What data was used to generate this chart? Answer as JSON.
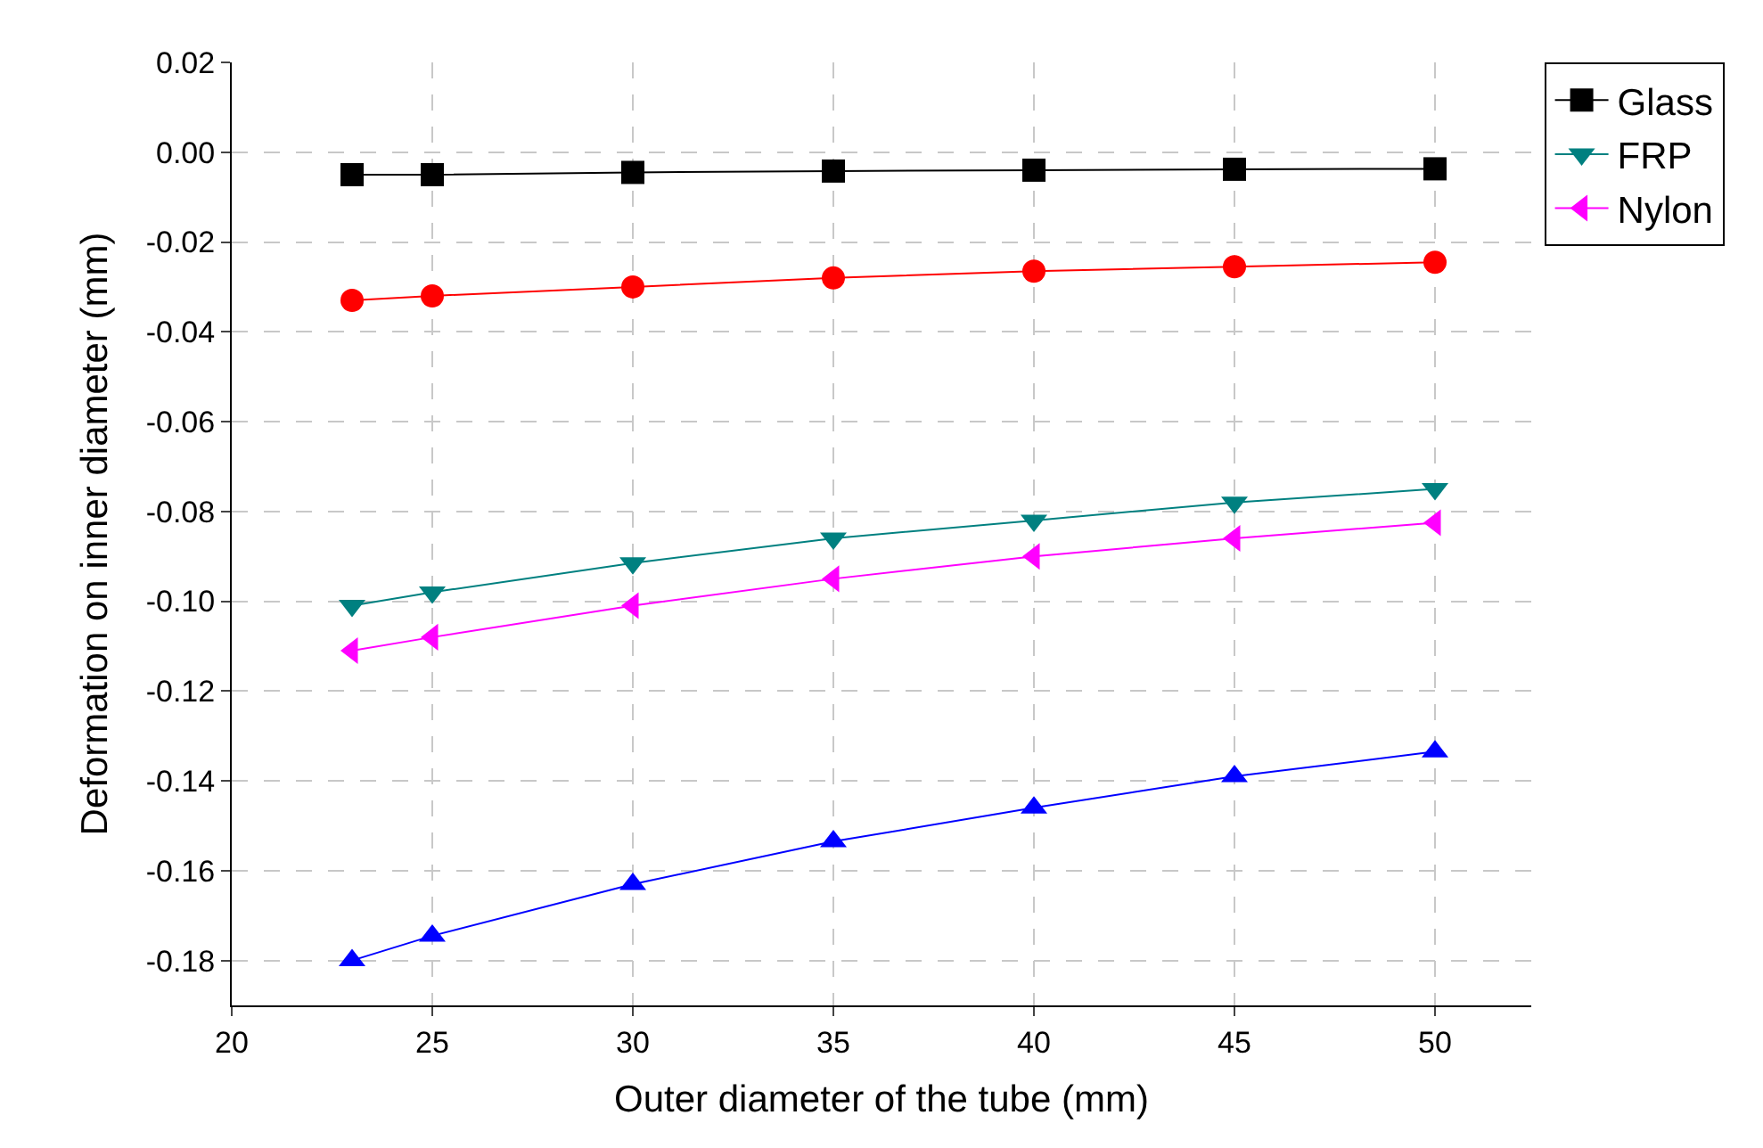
{
  "chart_data": {
    "type": "line",
    "xlabel": "Outer diameter of the tube (mm)",
    "ylabel": "Deformation on inner diameter (mm)",
    "x": [
      23,
      25,
      30,
      35,
      40,
      45,
      50
    ],
    "xlim": [
      20,
      52.4
    ],
    "xticks": [
      20,
      25,
      30,
      35,
      40,
      45,
      50
    ],
    "ylim": [
      -0.19,
      0.02
    ],
    "yticks": [
      {
        "value": 0.02,
        "label": "0.02"
      },
      {
        "value": 0,
        "label": "0.00"
      },
      {
        "value": -0.02,
        "label": "-0.02"
      },
      {
        "value": -0.04,
        "label": "-0.04"
      },
      {
        "value": -0.06,
        "label": "-0.06"
      },
      {
        "value": -0.08,
        "label": "-0.08"
      },
      {
        "value": -0.1,
        "label": "-0.10"
      },
      {
        "value": -0.12,
        "label": "-0.12"
      },
      {
        "value": -0.14,
        "label": "-0.14"
      },
      {
        "value": -0.16,
        "label": "-0.16"
      },
      {
        "value": -0.18,
        "label": "-0.18"
      }
    ],
    "grid": true,
    "legend": "top right",
    "line_style": "solid",
    "series": [
      {
        "name": "Glass",
        "color": "#000000",
        "marker": "square",
        "values": [
          -0.005,
          -0.005,
          -0.0045,
          -0.0042,
          -0.004,
          -0.0038,
          -0.0037
        ]
      },
      {
        "color": "#ff0000",
        "marker": "circle",
        "values": [
          -0.033,
          -0.032,
          -0.03,
          -0.028,
          -0.0265,
          -0.0255,
          -0.0245
        ]
      },
      {
        "color": "#0000ff",
        "marker": "triangle",
        "values": [
          -0.18,
          -0.1745,
          -0.163,
          -0.1535,
          -0.146,
          -0.139,
          -0.1335
        ]
      },
      {
        "name": "FRP",
        "color": "#008080",
        "marker": "triangle-down",
        "values": [
          -0.101,
          -0.098,
          -0.0915,
          -0.086,
          -0.082,
          -0.078,
          -0.075
        ]
      },
      {
        "name": "Nylon",
        "color": "#ff00ff",
        "marker": "triangle-left",
        "values": [
          -0.111,
          -0.108,
          -0.101,
          -0.095,
          -0.09,
          -0.086,
          -0.0825
        ]
      }
    ]
  }
}
